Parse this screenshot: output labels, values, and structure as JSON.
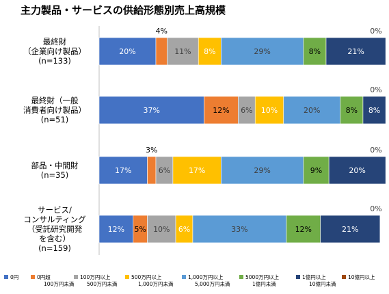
{
  "chart_data": {
    "type": "bar",
    "orientation": "horizontal",
    "stacked": true,
    "title": "主力製品・サービスの供給形態別売上高規模",
    "xlim": [
      0,
      100
    ],
    "grid": false,
    "legend_position": "bottom",
    "categories": [
      [
        "最終財",
        "（企業向け製品）",
        "(n=133)"
      ],
      [
        "最終財（一般",
        "消費者向け製品）",
        "(n=51)"
      ],
      [
        "部品・中間財",
        "(n=35)"
      ],
      [
        "サービス/",
        "コンサルティング",
        "（受託研究開発",
        "を含む）",
        "(n=159)"
      ]
    ],
    "series": [
      {
        "name": "0円",
        "color": "#4472C4",
        "label_color": "#ffffff",
        "values": [
          20,
          37,
          17,
          12
        ]
      },
      {
        "name": "0円超\n100万円未満",
        "color": "#ED7D31",
        "label_color": "#000000",
        "values": [
          4,
          12,
          3,
          5
        ]
      },
      {
        "name": "100万円以上\n500万円未満",
        "color": "#A5A5A5",
        "label_color": "#404040",
        "values": [
          11,
          6,
          6,
          10
        ]
      },
      {
        "name": "500万円以上\n1,000万円未満",
        "color": "#FFC000",
        "label_color": "#ffffff",
        "values": [
          8,
          10,
          17,
          6
        ]
      },
      {
        "name": "1,000万円以上\n5,000万円未満",
        "color": "#5B9BD5",
        "label_color": "#404040",
        "values": [
          29,
          20,
          29,
          33
        ]
      },
      {
        "name": "5000万円以上\n1億円未満",
        "color": "#70AD47",
        "label_color": "#000000",
        "values": [
          8,
          8,
          9,
          12
        ]
      },
      {
        "name": "1億円以上\n10億円未満",
        "color": "#264478",
        "label_color": "#ffffff",
        "values": [
          21,
          8,
          20,
          21
        ]
      },
      {
        "name": "10億円以上",
        "color": "#9E480E",
        "label_color": "#000000",
        "values": [
          0,
          0,
          0,
          0
        ]
      }
    ],
    "data_labels": [
      [
        "20%",
        "4%",
        "11%",
        "8%",
        "29%",
        "8%",
        "21%",
        "0%"
      ],
      [
        "37%",
        "12%",
        "6%",
        "10%",
        "20%",
        "8%",
        "8%",
        "0%"
      ],
      [
        "17%",
        "3%",
        "6%",
        "17%",
        "29%",
        "9%",
        "20%",
        "0%"
      ],
      [
        "12%",
        "5%",
        "10%",
        "6%",
        "33%",
        "12%",
        "21%",
        "0%"
      ]
    ]
  }
}
